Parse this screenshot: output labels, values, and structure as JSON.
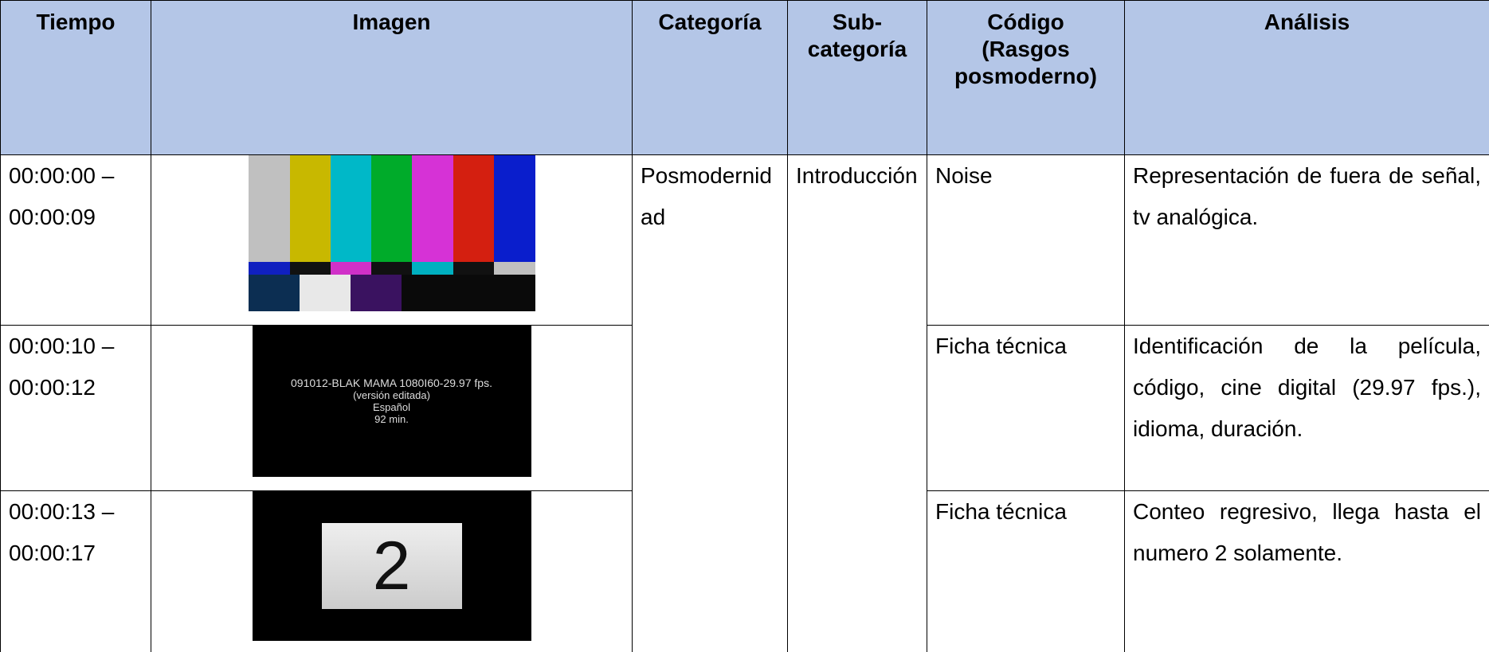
{
  "table": {
    "header": [
      "Tiempo",
      "Imagen",
      "Categoría",
      "Sub-categoría",
      "Código (Rasgos posmoderno)",
      "Análisis"
    ],
    "categoria": "Posmodernidad",
    "subcategoria": "Introducción",
    "rows": [
      {
        "tiempo": "00:00:00 – 00:00:09",
        "codigo": "Noise",
        "analisis": "Representación de fuera de señal, tv analógica."
      },
      {
        "tiempo": "00:00:10 – 00:00:12",
        "imagen": [
          "091012-BLAK MAMA 1080I60-29.97 fps.",
          "(versión editada)",
          "Español",
          "92 min."
        ],
        "codigo": "Ficha técnica",
        "analisis": "Identificación de la película, código, cine digital (29.97 fps.), idioma, duración."
      },
      {
        "tiempo": "00:00:13 – 00:00:17",
        "imagen": [
          "2"
        ],
        "codigo": "Ficha técnica",
        "analisis": "Conteo regresivo, llega hasta el numero 2 solamente."
      }
    ]
  }
}
